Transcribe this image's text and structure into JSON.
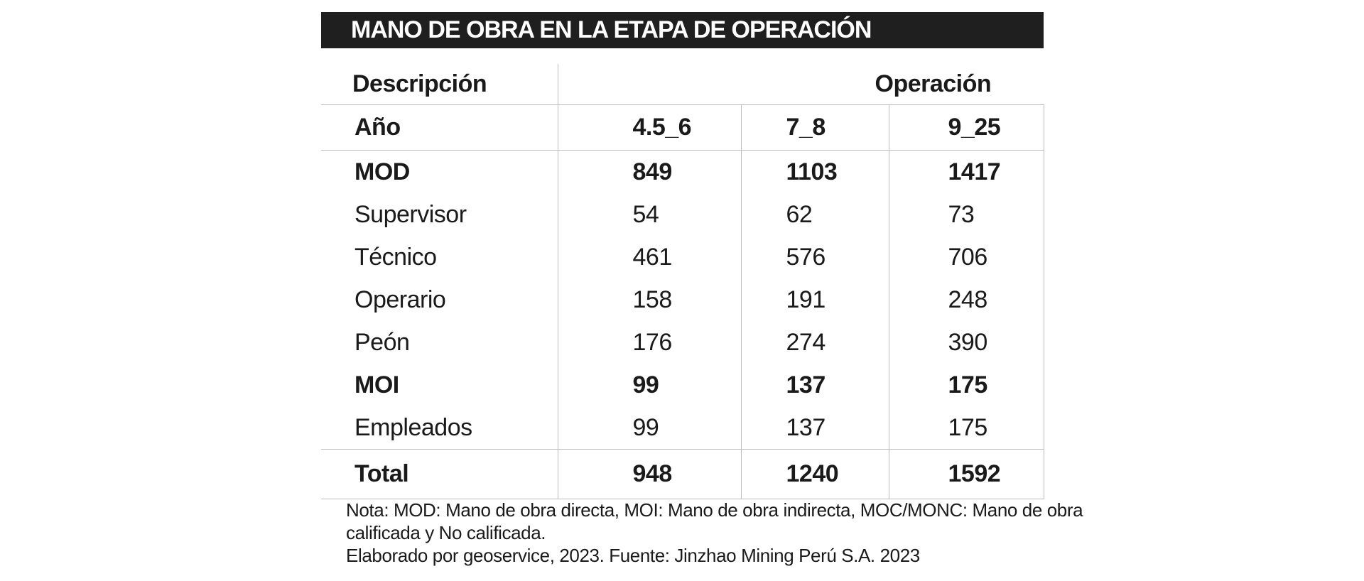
{
  "title": "MANO DE OBRA EN LA ETAPA DE OPERACIÓN",
  "header": {
    "descripcion": "Descripción",
    "operacion": "Operación"
  },
  "year_row": {
    "label": "Año",
    "values": [
      "4.5_6",
      "7_8",
      "9_25"
    ]
  },
  "rows": [
    {
      "label": "MOD",
      "values": [
        "849",
        "1103",
        "1417"
      ],
      "bold": true
    },
    {
      "label": "Supervisor",
      "values": [
        "54",
        "62",
        "73"
      ],
      "bold": false
    },
    {
      "label": "Técnico",
      "values": [
        "461",
        "576",
        "706"
      ],
      "bold": false
    },
    {
      "label": "Operario",
      "values": [
        "158",
        "191",
        "248"
      ],
      "bold": false
    },
    {
      "label": "Peón",
      "values": [
        "176",
        "274",
        "390"
      ],
      "bold": false
    },
    {
      "label": "MOI",
      "values": [
        "99",
        "137",
        "175"
      ],
      "bold": true
    },
    {
      "label": "Empleados",
      "values": [
        "99",
        "137",
        "175"
      ],
      "bold": false
    }
  ],
  "total": {
    "label": "Total",
    "values": [
      "948",
      "1240",
      "1592"
    ]
  },
  "notes": {
    "line1": "Nota: MOD: Mano de obra directa, MOI: Mano de obra indirecta, MOC/MONC: Mano de obra",
    "line2": "calificada y No calificada.",
    "line3": "Elaborado por geoservice, 2023. Fuente: Jinzhao Mining Perú S.A. 2023"
  }
}
